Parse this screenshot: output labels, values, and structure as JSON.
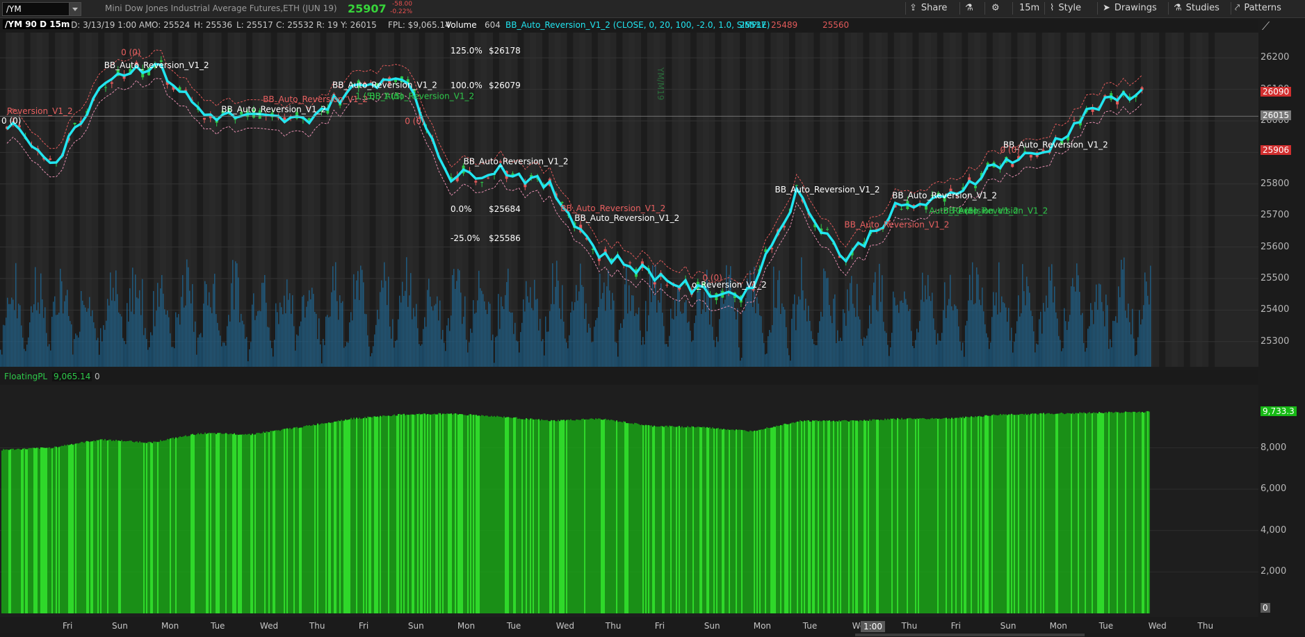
{
  "header": {
    "symbol": "/YM",
    "description": "Mini Dow Jones Industrial Average Futures,ETH (JUN 19)",
    "last_price": "25907",
    "change": "-58.00",
    "change_pct": "-0.22%",
    "buttons": [
      "Share",
      "15m",
      "Style",
      "Drawings",
      "Studies",
      "Patterns"
    ]
  },
  "status": {
    "chart_label": "/YM 90 D 15m",
    "date": "D: 3/13/19 1:00 AM",
    "open": "O: 25524",
    "high": "H: 25536",
    "low": "L: 25517",
    "close": "C: 25532",
    "range": "R: 19",
    "y_value": "Y: 26015",
    "fpl": "FPL: $9,065.14",
    "volume_label": "Volume",
    "volume_value": "604",
    "study": "BB_Auto_Reversion_V1_2 (CLOSE, 0, 20, 100, -2.0, 1.0, SIMPLE)",
    "band_mid": "25537",
    "band_upper": "25489",
    "band_lower": "25560"
  },
  "lower": {
    "study": "FloatingPL",
    "value": "9,065.14",
    "zero": "0"
  },
  "colors": {
    "bull": "#2ec84a",
    "bear": "#e25a5a",
    "mid": "#22e5f0",
    "volume": "#1d6fa3",
    "pl": "#19b515"
  },
  "chart_data": [
    {
      "type": "line",
      "ylim": [
        25220,
        26280
      ],
      "yticks": [
        25300,
        25400,
        25500,
        25600,
        25700,
        25800,
        25900,
        26000,
        26100,
        26200
      ],
      "x": [
        "Fri",
        "Sun",
        "Mon",
        "Tue",
        "Wed",
        "Thu",
        "Fri",
        "Sun",
        "Mon",
        "Tue",
        "Wed",
        "Thu",
        "Fri",
        "Sun",
        "Mon",
        "Tue",
        "Wed",
        "Thu",
        "Fri",
        "Sun",
        "Mon",
        "Tue",
        "Wed",
        "Thu"
      ],
      "series": [
        {
          "values": [
            25990,
            25870,
            26140,
            26180,
            26020,
            26010,
            26000,
            26100,
            26150,
            25820,
            25850,
            25790,
            25580,
            25520,
            25460,
            25450,
            25770,
            25560,
            25720,
            25750,
            25860,
            25900,
            26040,
            26100
          ]
        }
      ],
      "price_tags": [
        "26090",
        "26015",
        "25906"
      ],
      "fib_labels": [
        {
          "pct": "125.0%",
          "price": "$26178"
        },
        {
          "pct": "100.0%",
          "price": "$26079"
        },
        {
          "pct": "0.0%",
          "price": "$25684"
        },
        {
          "pct": "-25.0%",
          "price": "$25586"
        }
      ],
      "annotations": {
        "white": [
          "0 (0)",
          "BB_Auto_Reversion_V1_2",
          "o_Reversion_V1_2",
          "BB_Auto_Reversion_V1_2",
          "BB_Auto_Reversion_V1_2",
          "BB_Auto_Reversion_V1_2",
          "BB_Auto_Reversion_V1_2",
          "BB_Auto_Reversion_V1_2",
          "BB_Auto_Reversion_V1_2",
          "BB_Auto_Reversion_V1_2"
        ],
        "red": [
          "0 (0)",
          "BB_Auto_Reversion_V1_2",
          "0 (0)",
          "BB_Auto_Reversion_V1_2",
          "0 (0)",
          "Reversion_V1_2",
          "0 (0)",
          "BB_Auto_Reversion_V1_2"
        ],
        "green": [
          "1 (5)",
          "BB_Auto_Reversion_V1_2",
          "1 (5)",
          "Auto_Reversion_V1_2",
          "BB_Auto_Reversion_V1_2",
          "1 (5)"
        ]
      },
      "vertical_text": [
        "YM/M19"
      ]
    },
    {
      "type": "bar",
      "title": "FloatingPL",
      "ylim": [
        0,
        10200
      ],
      "yticks": [
        2000,
        4000,
        6000,
        8000
      ],
      "last_value_tag": "9,733.3",
      "zero_tag": "0",
      "x": [
        "Fri",
        "Sun",
        "Mon",
        "Tue",
        "Wed",
        "Thu",
        "Fri",
        "Sun",
        "Mon",
        "Tue",
        "Wed",
        "Thu",
        "Fri",
        "Sun",
        "Mon",
        "Tue",
        "Wed",
        "Thu",
        "Fri",
        "Sun",
        "Mon",
        "Tue",
        "Wed",
        "Thu"
      ],
      "values": [
        7900,
        8000,
        8400,
        8250,
        8700,
        8650,
        9000,
        9400,
        9600,
        9650,
        9500,
        9300,
        9400,
        9050,
        9000,
        8800,
        9300,
        9300,
        9400,
        9420,
        9600,
        9650,
        9700,
        9733
      ]
    }
  ],
  "time_axis": {
    "labels": [
      "Fri",
      "Sun",
      "Mon",
      "Tue",
      "Wed",
      "Thu",
      "Fri",
      "Sun",
      "Mon",
      "Tue",
      "Wed",
      "Thu",
      "Fri",
      "Sun",
      "Mon",
      "Tue",
      "Wed",
      "Thu",
      "Fri",
      "Sun",
      "Mon",
      "Tue",
      "Wed",
      "Thu"
    ],
    "crosshair": "1:00"
  }
}
